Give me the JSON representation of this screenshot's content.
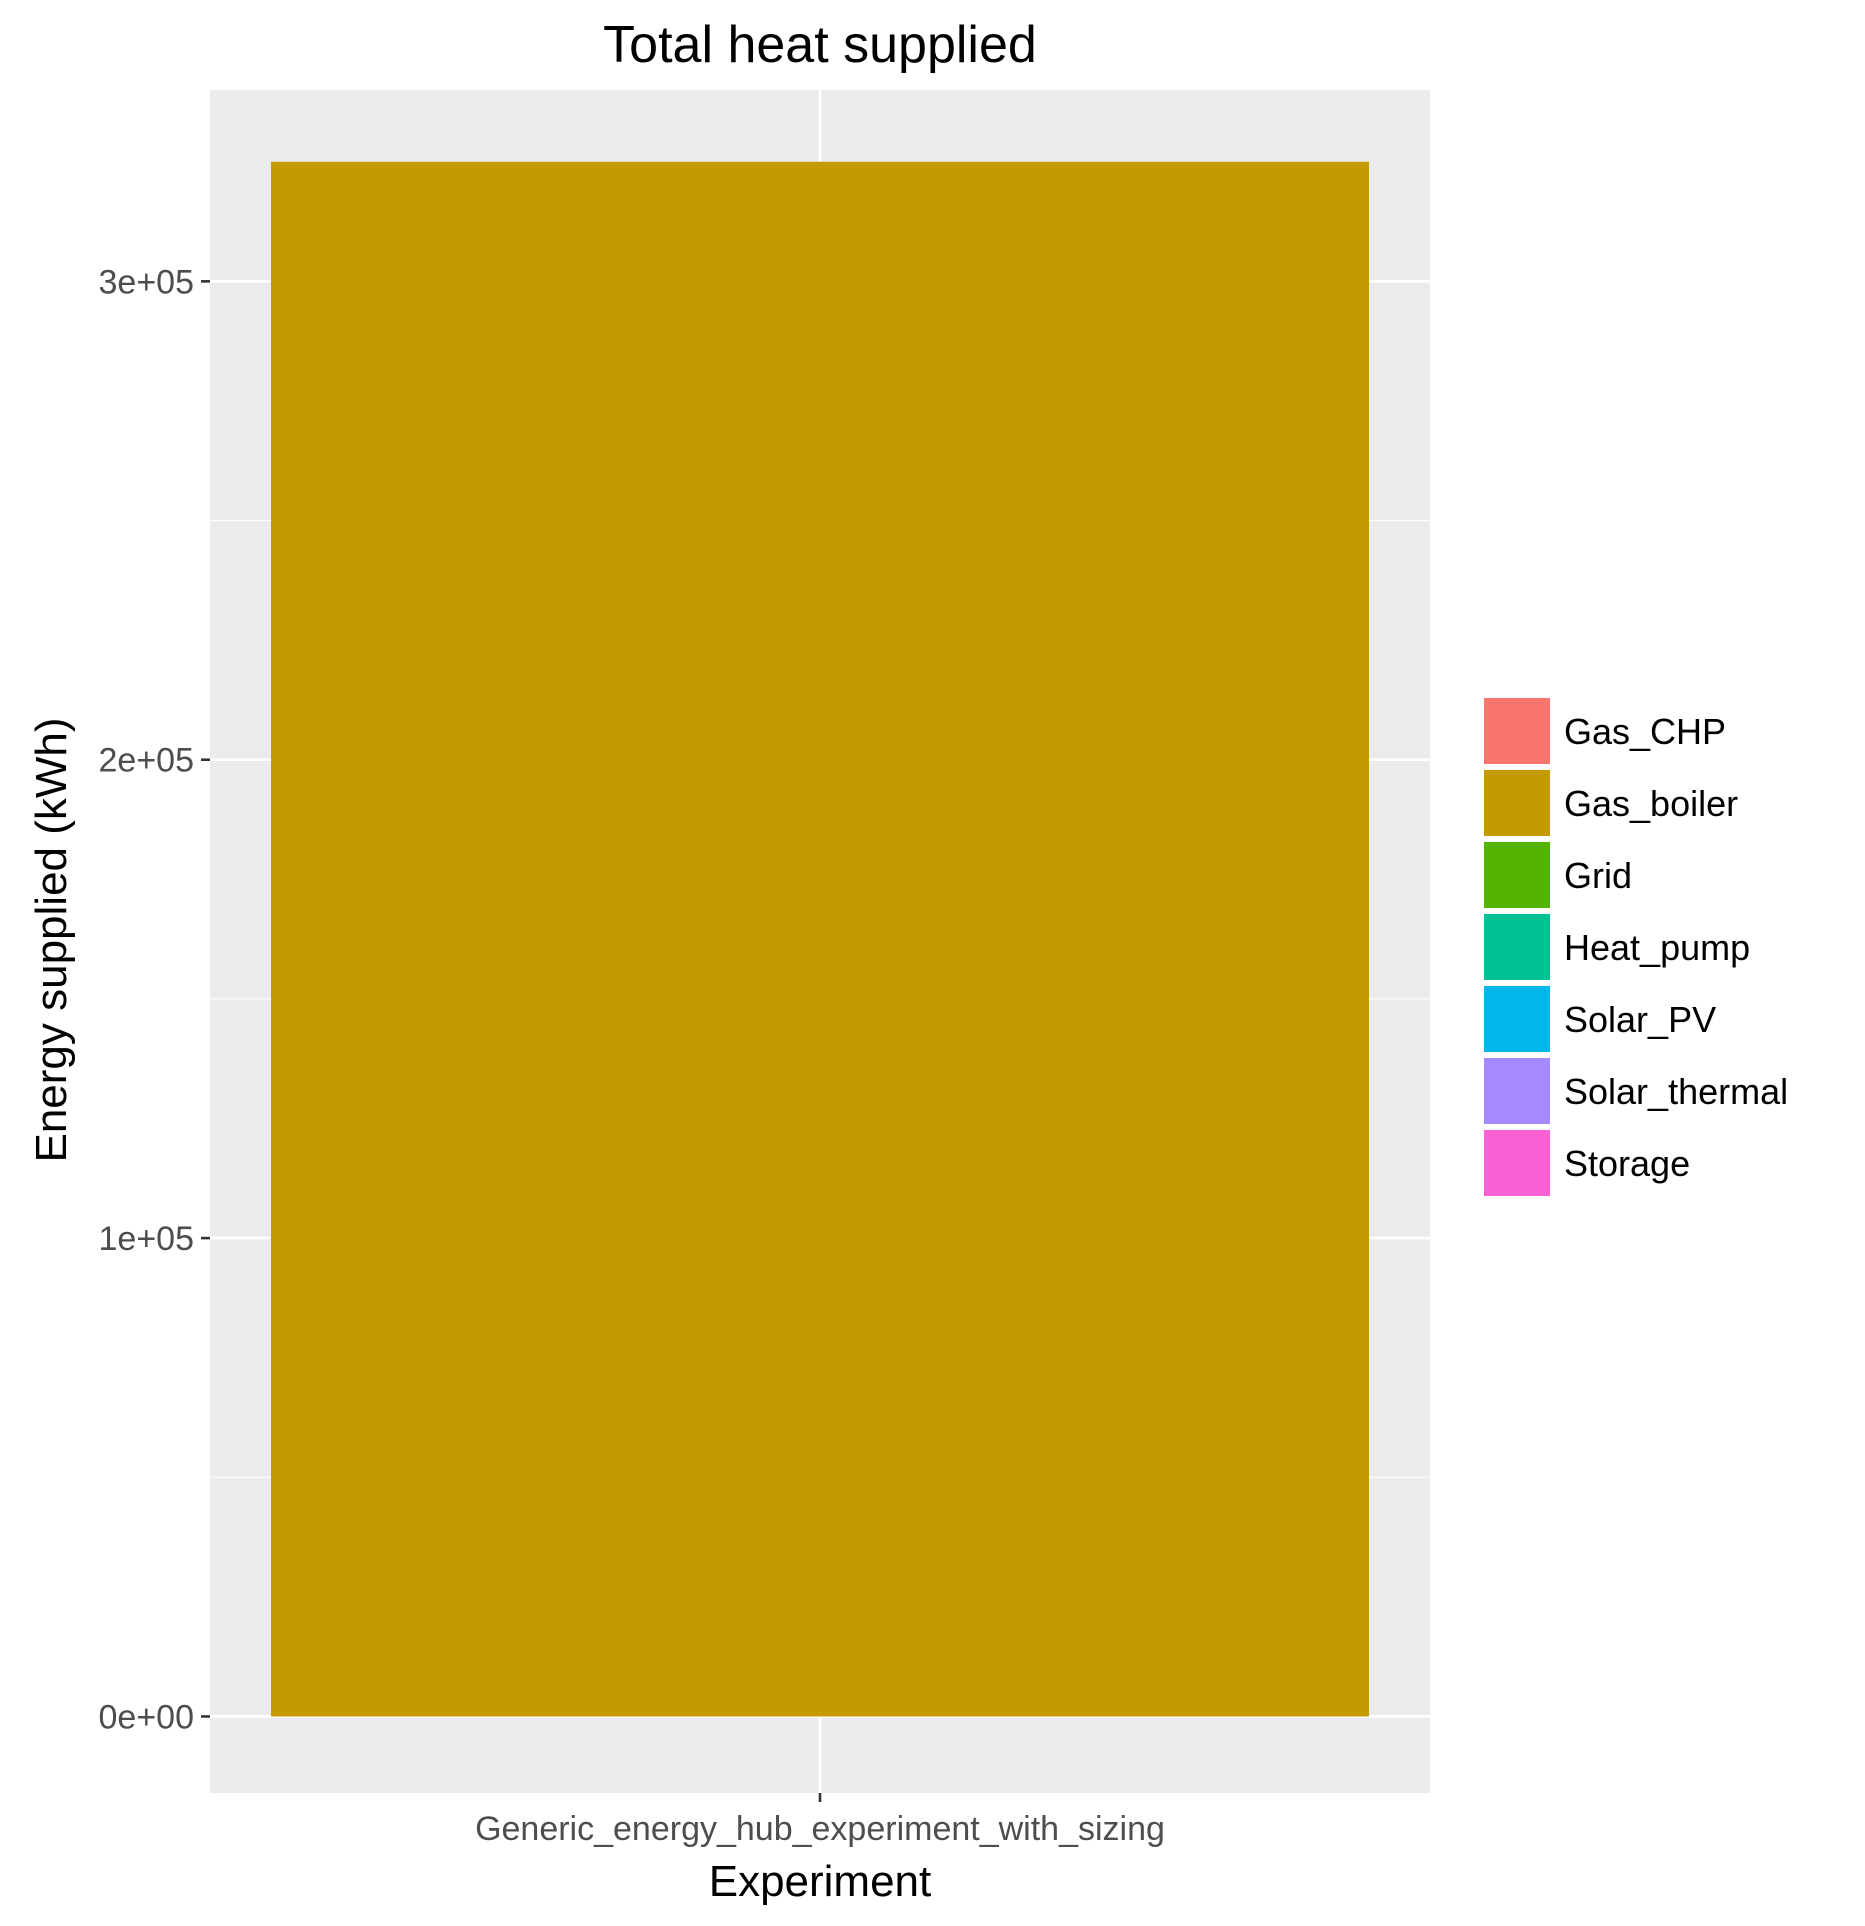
{
  "chart_data": {
    "type": "bar",
    "stacked": true,
    "title": "Total heat supplied",
    "xlabel": "Experiment",
    "ylabel": "Energy supplied (kWh)",
    "categories": [
      "Generic_energy_hub_experiment_with_sizing"
    ],
    "ylim": [
      -16000,
      340000
    ],
    "yticks": [
      0,
      100000,
      200000,
      300000
    ],
    "ytick_labels": [
      "0e+00",
      "1e+05",
      "2e+05",
      "3e+05"
    ],
    "grid": true,
    "legend_position": "right",
    "series": [
      {
        "name": "Gas_CHP",
        "color": "#F8766D",
        "values": [
          0
        ]
      },
      {
        "name": "Gas_boiler",
        "color": "#C49A00",
        "values": [
          325000
        ]
      },
      {
        "name": "Grid",
        "color": "#53B400",
        "values": [
          0
        ]
      },
      {
        "name": "Heat_pump",
        "color": "#00C094",
        "values": [
          0
        ]
      },
      {
        "name": "Solar_PV",
        "color": "#00B6EB",
        "values": [
          0
        ]
      },
      {
        "name": "Solar_thermal",
        "color": "#A58AFF",
        "values": [
          0
        ]
      },
      {
        "name": "Storage",
        "color": "#FB61D7",
        "values": [
          0
        ]
      }
    ],
    "panel_background": "#EBEBEB",
    "gridline_color": "#FFFFFF"
  }
}
